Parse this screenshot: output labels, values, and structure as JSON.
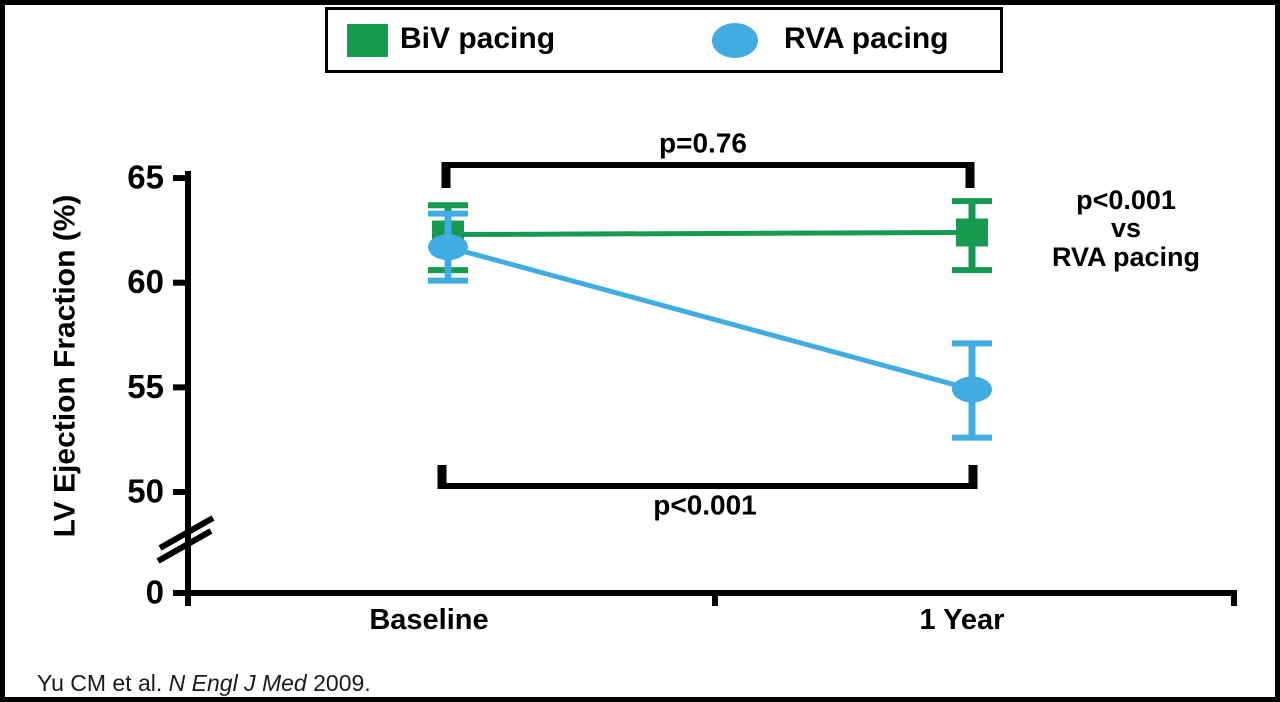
{
  "figure": {
    "background": "#ffffff",
    "frame_color": "#000000"
  },
  "legend": {
    "items": [
      {
        "label": "BiV pacing",
        "marker": "square",
        "color": "#169A4F"
      },
      {
        "label": "RVA pacing",
        "marker": "ellipse",
        "color": "#41ACE1"
      }
    ]
  },
  "citation": {
    "prefix": "Yu CM et al. ",
    "journal_italic": "N Engl J Med",
    "suffix": " 2009."
  },
  "chart_data": {
    "type": "line",
    "categories": [
      "Baseline",
      "1 Year"
    ],
    "series": [
      {
        "name": "BiV pacing",
        "marker": "square",
        "color": "#169A4F",
        "values": [
          62.3,
          62.4
        ],
        "error_upper": [
          63.7,
          63.9
        ],
        "error_lower": [
          60.6,
          60.6
        ]
      },
      {
        "name": "RVA pacing",
        "marker": "ellipse",
        "color": "#41ACE1",
        "values": [
          61.7,
          54.9
        ],
        "error_upper": [
          63.3,
          57.1
        ],
        "error_lower": [
          60.1,
          52.6
        ]
      }
    ],
    "xlabel": "",
    "ylabel": "LV Ejection Fraction (%)",
    "yticks": [
      0,
      50,
      55,
      60,
      65
    ],
    "ylim": [
      0,
      66
    ],
    "y_axis_break_between": [
      0,
      50
    ],
    "grid": false,
    "legend_position": "top-center",
    "annotations": {
      "top_bracket_label": "p=0.76",
      "bottom_bracket_label": "p<0.001",
      "right_note_lines": [
        "p<0.001",
        "vs",
        "RVA pacing"
      ]
    }
  }
}
